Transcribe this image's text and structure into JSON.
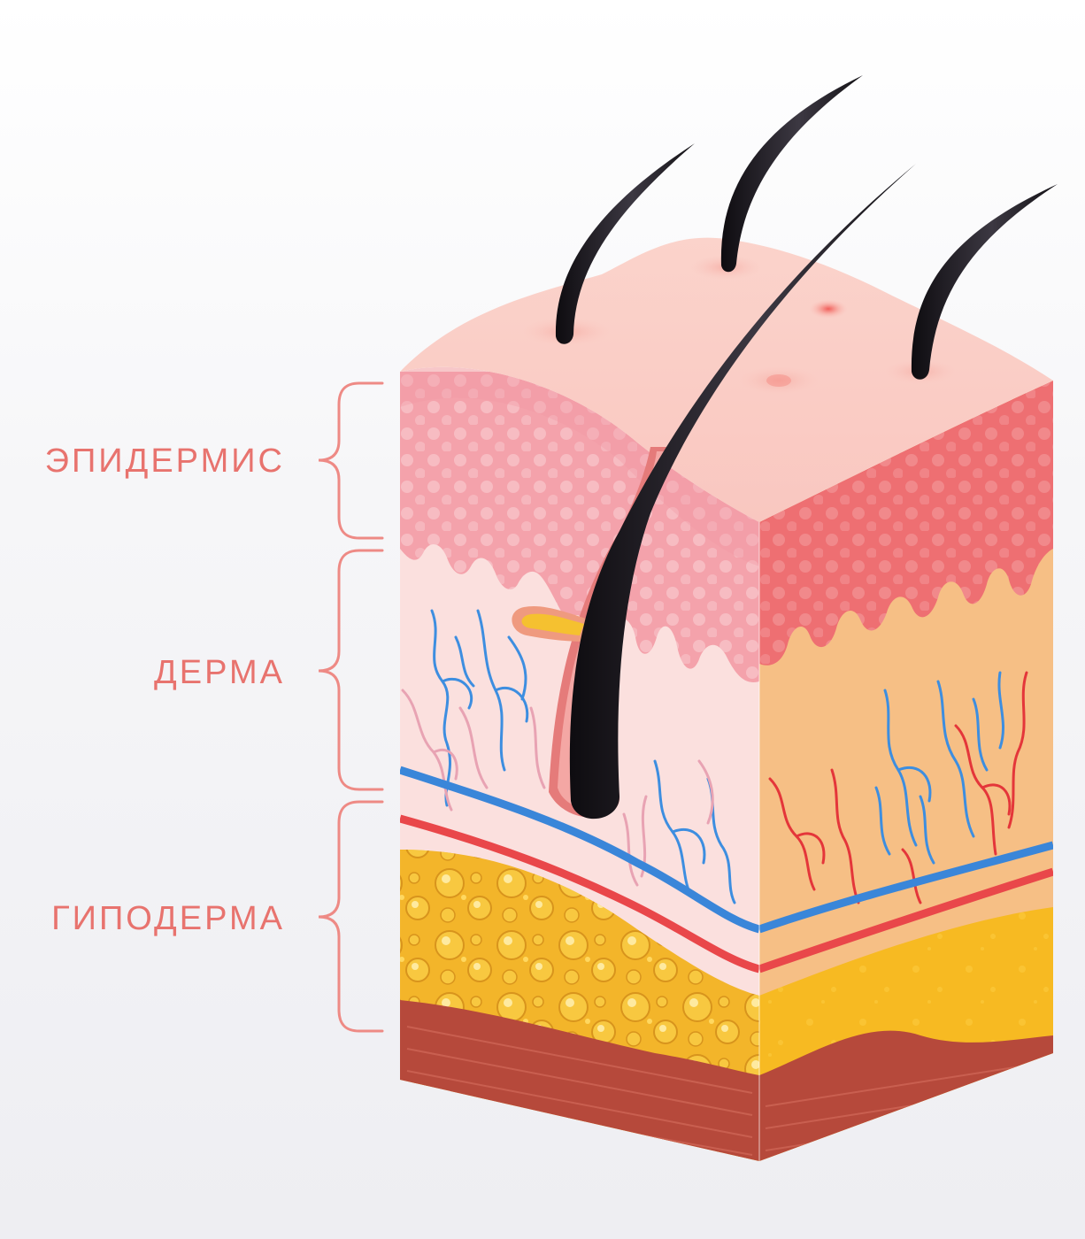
{
  "labels": {
    "epidermis": "ЭПИДЕРМИС",
    "dermis": "ДЕРМА",
    "hypodermis": "ГИПОДЕРМА"
  },
  "colors": {
    "label": "#e8736e",
    "bracket": "#ee8a85",
    "hair": "#1c1a1f",
    "epidermis": "#f4a3aa",
    "dermis": "#f9dcdc",
    "fat": "#f3b52a",
    "vein": "#3a86d9",
    "artery": "#e4363a",
    "muscle": "#b6493b"
  }
}
